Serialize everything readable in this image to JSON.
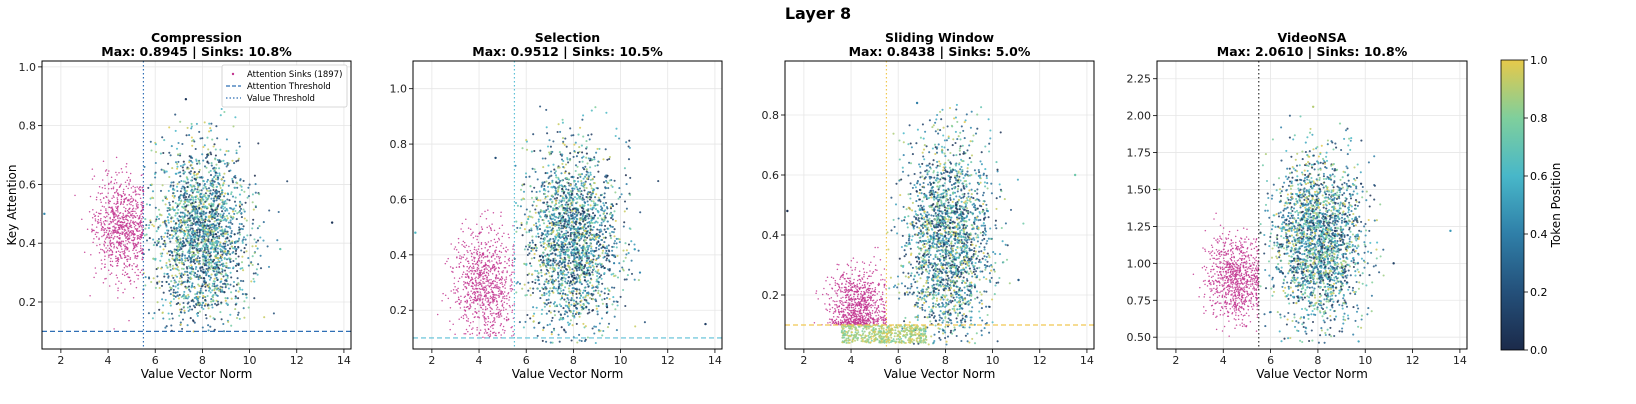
{
  "figure": {
    "title": "Layer 8",
    "colorbar": {
      "label": "Token Position",
      "ticks": [
        "0.0",
        "0.2",
        "0.4",
        "0.6",
        "0.8",
        "1.0"
      ],
      "colormap": [
        "#1b2a4a",
        "#24507a",
        "#2f7fa8",
        "#48b7c9",
        "#7fcf9c",
        "#e6c94a"
      ]
    }
  },
  "legend": {
    "sinks": "Attention Sinks (1897)",
    "attn_threshold": "Attention Threshold",
    "value_threshold": "Value Threshold"
  },
  "chart_data": [
    {
      "type": "scatter",
      "title": "Compression",
      "subtitle": "Max: 0.8945 | Sinks: 10.8%",
      "xlabel": "Value Vector Norm",
      "ylabel": "Key Attention",
      "xlim": [
        1.2,
        14.3
      ],
      "ylim": [
        0.04,
        1.02
      ],
      "xticks": [
        2,
        4,
        6,
        8,
        10,
        12,
        14
      ],
      "yticks": [
        0.2,
        0.4,
        0.6,
        0.8,
        1.0
      ],
      "ytick_labels": [
        "0.2",
        "0.4",
        "0.6",
        "0.8",
        "1.0"
      ],
      "value_threshold": 5.5,
      "attention_threshold": 0.1,
      "threshold_color": "#2f6fb5",
      "sink_cluster": {
        "center": [
          4.6,
          0.45
        ],
        "spread": [
          0.6,
          0.09
        ],
        "ymax": 0.72
      },
      "main_cluster": {
        "center": [
          8.0,
          0.42
        ],
        "spread": [
          0.95,
          0.15
        ],
        "ymin": 0.1,
        "ymax": 0.89
      },
      "outliers": [
        [
          13.5,
          0.47
        ],
        [
          11.3,
          0.38
        ],
        [
          7.3,
          0.89
        ],
        [
          1.3,
          0.5
        ]
      ],
      "grid": true,
      "legend_position": "top-right"
    },
    {
      "type": "scatter",
      "title": "Selection",
      "subtitle": "Max: 0.9512 | Sinks: 10.5%",
      "xlabel": "Value Vector Norm",
      "ylabel": "",
      "xlim": [
        1.2,
        14.3
      ],
      "ylim": [
        0.06,
        1.1
      ],
      "xticks": [
        2,
        4,
        6,
        8,
        10,
        12,
        14
      ],
      "yticks": [
        0.2,
        0.4,
        0.6,
        0.8,
        1.0
      ],
      "ytick_labels": [
        "0.2",
        "0.4",
        "0.6",
        "0.8",
        "1.0"
      ],
      "value_threshold": 5.5,
      "attention_threshold": 0.1,
      "threshold_color": "#5bbfd6",
      "sink_cluster": {
        "center": [
          4.2,
          0.3
        ],
        "spread": [
          0.65,
          0.1
        ],
        "ymax": 0.75
      },
      "main_cluster": {
        "center": [
          8.0,
          0.45
        ],
        "spread": [
          0.95,
          0.17
        ],
        "ymin": 0.08,
        "ymax": 0.95
      },
      "outliers": [
        [
          13.6,
          0.15
        ],
        [
          1.3,
          0.48
        ],
        [
          10.6,
          0.42
        ],
        [
          4.7,
          0.75
        ]
      ],
      "grid": true,
      "legend_position": "none"
    },
    {
      "type": "scatter",
      "title": "Sliding Window",
      "subtitle": "Max: 0.8438 | Sinks: 5.0%",
      "xlabel": "Value Vector Norm",
      "ylabel": "",
      "xlim": [
        1.2,
        14.3
      ],
      "ylim": [
        0.02,
        0.98
      ],
      "xticks": [
        2,
        4,
        6,
        8,
        10,
        12,
        14
      ],
      "yticks": [
        0.2,
        0.4,
        0.6,
        0.8
      ],
      "ytick_labels": [
        "0.2",
        "0.4",
        "0.6",
        "0.8"
      ],
      "value_threshold": 5.5,
      "attention_threshold": 0.1,
      "threshold_color": "#f0c850",
      "sink_cluster": {
        "center": [
          4.3,
          0.16
        ],
        "spread": [
          0.6,
          0.06
        ],
        "ymax": 0.4
      },
      "main_cluster": {
        "center": [
          8.1,
          0.38
        ],
        "spread": [
          0.9,
          0.17
        ],
        "ymin": 0.03,
        "ymax": 0.84
      },
      "outliers": [
        [
          13.5,
          0.6
        ],
        [
          1.3,
          0.48
        ],
        [
          11.1,
          0.25
        ],
        [
          6.8,
          0.84
        ]
      ],
      "grid": true,
      "legend_position": "none"
    },
    {
      "type": "scatter",
      "title": "VideoNSA",
      "subtitle": "Max: 2.0610 | Sinks: 10.8%",
      "xlabel": "Value Vector Norm",
      "ylabel": "",
      "xlim": [
        1.2,
        14.3
      ],
      "ylim": [
        0.42,
        2.37
      ],
      "xticks": [
        2,
        4,
        6,
        8,
        10,
        12,
        14
      ],
      "yticks": [
        0.5,
        0.75,
        1.0,
        1.25,
        1.5,
        1.75,
        2.0,
        2.25
      ],
      "ytick_labels": [
        "0.50",
        "0.75",
        "1.00",
        "1.25",
        "1.50",
        "1.75",
        "2.00",
        "2.25"
      ],
      "value_threshold": 5.5,
      "attention_threshold": null,
      "threshold_color": "#333333",
      "sink_cluster": {
        "center": [
          4.5,
          0.9
        ],
        "spread": [
          0.6,
          0.14
        ],
        "ymax": 1.47
      },
      "main_cluster": {
        "center": [
          8.0,
          1.15
        ],
        "spread": [
          0.95,
          0.28
        ],
        "ymin": 0.45,
        "ymax": 2.06
      },
      "outliers": [
        [
          13.6,
          1.22
        ],
        [
          1.3,
          1.5
        ],
        [
          11.2,
          1.0
        ],
        [
          7.8,
          2.06
        ]
      ],
      "grid": true,
      "legend_position": "none"
    }
  ]
}
